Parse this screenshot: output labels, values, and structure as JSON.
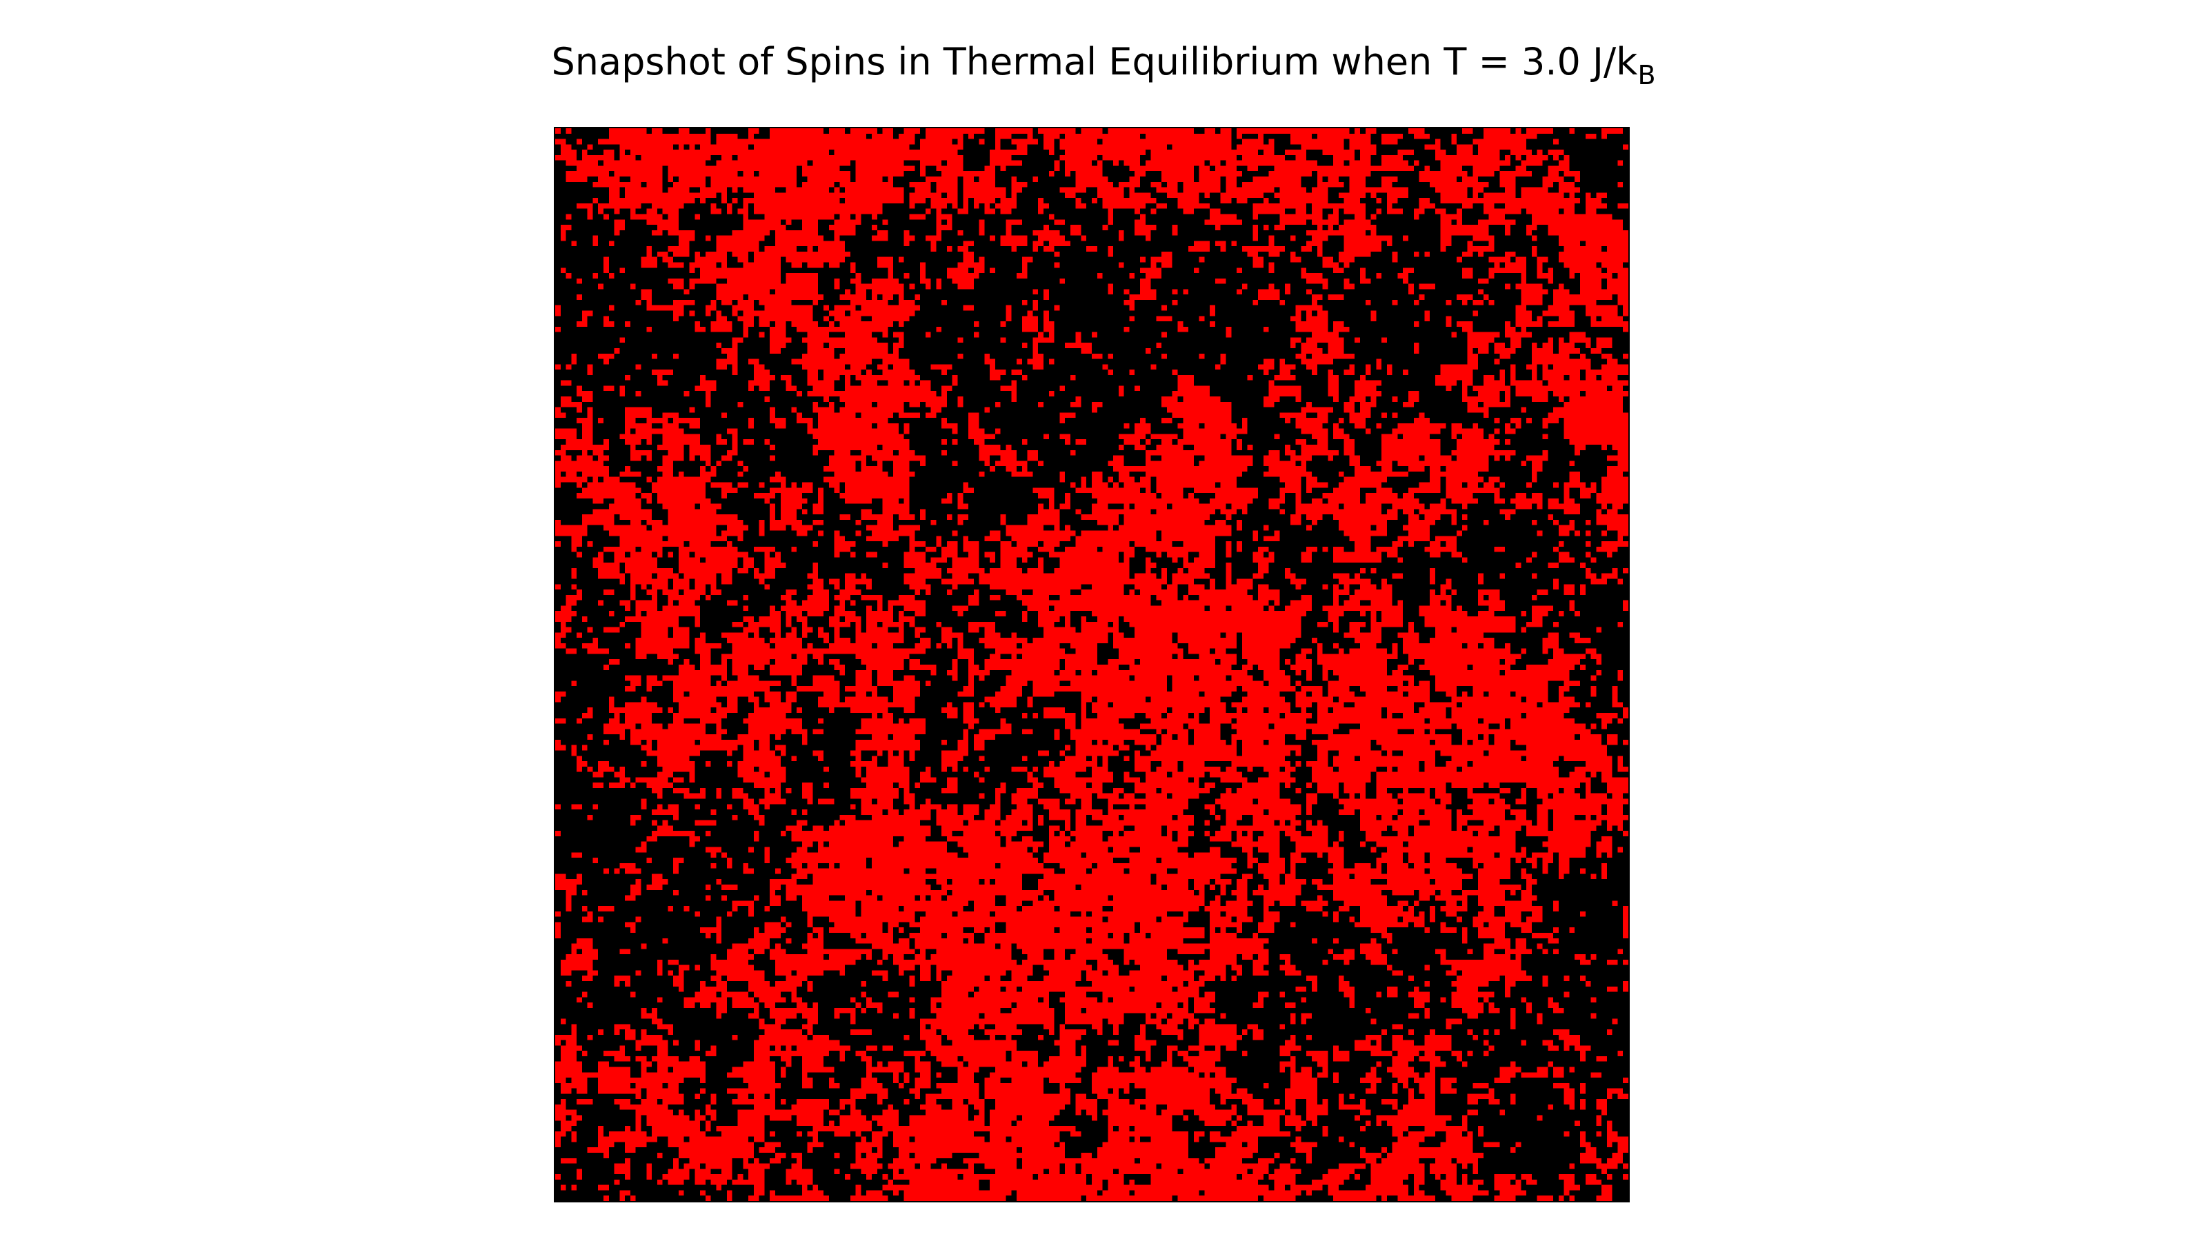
{
  "chart_data": {
    "type": "heatmap",
    "title": {
      "main": "Snapshot of Spins in Thermal Equilibrium when T = 3.0 J/k",
      "subscript": "B"
    },
    "xlabel": "",
    "ylabel": "",
    "axes_visible": false,
    "grid": false,
    "lattice_size": [
      200,
      200
    ],
    "states": [
      1,
      -1
    ],
    "colors": {
      "1": "#ff0000",
      "-1": "#000000"
    },
    "red_fraction": 0.51
  }
}
